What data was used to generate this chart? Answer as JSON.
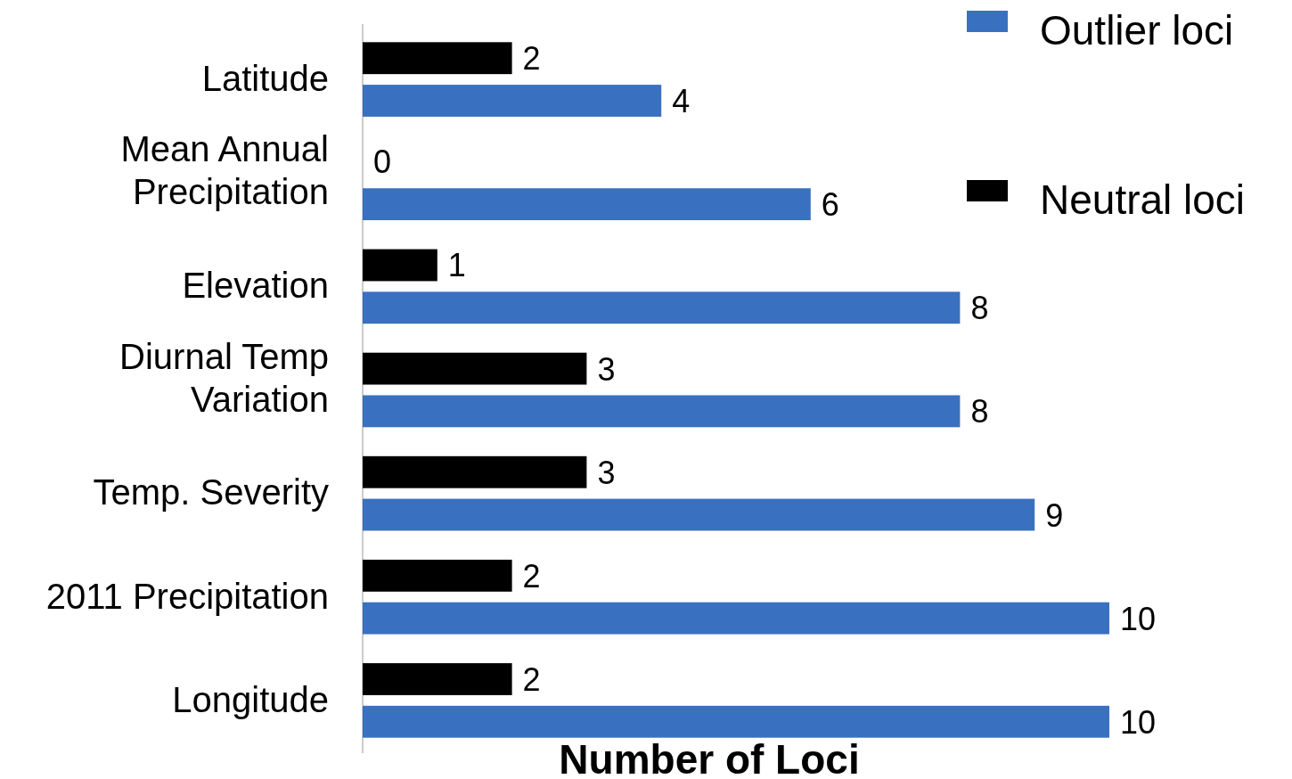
{
  "chart_data": {
    "type": "bar",
    "orientation": "horizontal",
    "xlabel": "Number of Loci",
    "categories": [
      "Latitude",
      "Mean Annual Precipitation",
      "Elevation",
      "Diurnal Temp Variation",
      "Temp. Severity",
      "2011 Precipitation",
      "Longitude"
    ],
    "series": [
      {
        "name": "Neutral loci",
        "color": "#000000",
        "values": [
          2,
          0,
          1,
          3,
          3,
          2,
          2
        ]
      },
      {
        "name": "Outlier loci",
        "color": "#3a70c0",
        "values": [
          4,
          6,
          8,
          8,
          9,
          10,
          10
        ]
      }
    ],
    "xlim": [
      0,
      10
    ],
    "tick_labels": "y",
    "data_labels": true,
    "legend": "top right"
  }
}
